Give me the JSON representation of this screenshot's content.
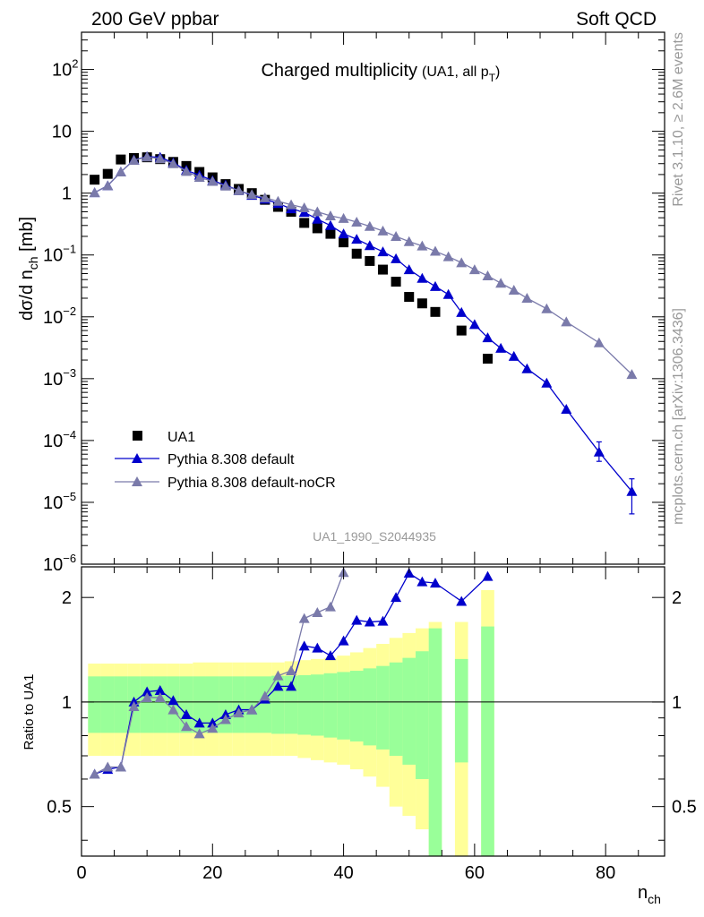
{
  "header": {
    "left": "200 GeV ppbar",
    "right": "Soft QCD"
  },
  "side": {
    "top": "Rivet 3.1.10, ≥ 2.6M events",
    "bottom": "mcplots.cern.ch [arXiv:1306.3436]"
  },
  "chart_data": [
    {
      "type": "scatter",
      "panel": "main",
      "title": "Charged multiplicity",
      "title_note_prefix": "(UA1, all p",
      "title_note_sub": "T",
      "title_note_suffix": ")",
      "ylabel": {
        "p1": "dσ/d n",
        "sub": "ch",
        "p2": " [mb]"
      },
      "yscale": "log",
      "ylim": [
        1e-06,
        400
      ],
      "xlim": [
        0,
        89
      ],
      "y_ticks": [
        {
          "v": 100,
          "base": "10",
          "exp": "2"
        },
        {
          "v": 10,
          "base": "10",
          "exp": ""
        },
        {
          "v": 1,
          "base": "1",
          "exp": ""
        },
        {
          "v": 0.1,
          "base": "10",
          "exp": "−1"
        },
        {
          "v": 0.01,
          "base": "10",
          "exp": "−2"
        },
        {
          "v": 0.001,
          "base": "10",
          "exp": "−3"
        },
        {
          "v": 0.0001,
          "base": "10",
          "exp": "−4"
        },
        {
          "v": 1e-05,
          "base": "10",
          "exp": "−5"
        },
        {
          "v": 1e-06,
          "base": "10",
          "exp": "−6"
        }
      ],
      "watermark": "UA1_1990_S2044935",
      "legend_position": "bottom-left",
      "series": [
        {
          "name": "UA1",
          "marker": "square",
          "color": "#000000",
          "x": [
            2,
            4,
            6,
            8,
            10,
            12,
            14,
            16,
            18,
            20,
            22,
            24,
            26,
            28,
            30,
            32,
            34,
            36,
            38,
            40,
            42,
            44,
            46,
            48,
            50,
            52,
            54,
            58,
            62
          ],
          "y": [
            1.65,
            2.05,
            3.5,
            3.7,
            3.8,
            3.55,
            3.2,
            2.75,
            2.2,
            1.8,
            1.4,
            1.17,
            1.0,
            0.78,
            0.6,
            0.5,
            0.33,
            0.27,
            0.22,
            0.16,
            0.105,
            0.08,
            0.058,
            0.037,
            0.021,
            0.0165,
            0.012,
            0.006,
            0.0021
          ]
        },
        {
          "name": "Pythia 8.308 default",
          "marker": "triangle",
          "color": "#0000cc",
          "x": [
            2,
            4,
            6,
            8,
            10,
            12,
            14,
            16,
            18,
            20,
            22,
            24,
            26,
            28,
            30,
            32,
            34,
            36,
            38,
            40,
            42,
            44,
            46,
            48,
            50,
            52,
            54,
            56,
            58,
            60,
            62,
            64,
            66,
            68,
            71,
            74,
            79,
            84
          ],
          "y": [
            1.02,
            1.32,
            2.2,
            3.45,
            3.9,
            3.8,
            3.1,
            2.35,
            1.95,
            1.6,
            1.35,
            1.1,
            0.92,
            0.8,
            0.68,
            0.56,
            0.49,
            0.38,
            0.3,
            0.22,
            0.18,
            0.142,
            0.113,
            0.087,
            0.058,
            0.042,
            0.031,
            0.023,
            0.0118,
            0.0075,
            0.0046,
            0.0031,
            0.0023,
            0.00145,
            0.00085,
            0.00032,
            6.5e-05,
            1.5e-05
          ],
          "err_hi": {
            "79": 9.5e-05,
            "84": 2.4e-05
          },
          "err_lo": {
            "79": 4.6e-05,
            "84": 6.5e-06
          }
        },
        {
          "name": "Pythia 8.308 default-noCR",
          "marker": "triangle",
          "color": "#7a7aaa",
          "x": [
            2,
            4,
            6,
            8,
            10,
            12,
            14,
            16,
            18,
            20,
            22,
            24,
            26,
            28,
            30,
            32,
            34,
            36,
            38,
            40,
            42,
            44,
            46,
            48,
            50,
            52,
            54,
            56,
            58,
            60,
            62,
            64,
            66,
            68,
            71,
            74,
            79,
            84
          ],
          "y": [
            1.02,
            1.32,
            2.2,
            3.4,
            3.85,
            3.6,
            3.0,
            2.25,
            1.8,
            1.55,
            1.3,
            1.1,
            0.95,
            0.84,
            0.74,
            0.65,
            0.58,
            0.5,
            0.43,
            0.39,
            0.34,
            0.29,
            0.245,
            0.2,
            0.165,
            0.14,
            0.115,
            0.094,
            0.075,
            0.058,
            0.046,
            0.035,
            0.027,
            0.02,
            0.0135,
            0.0083,
            0.0038,
            0.00117
          ]
        }
      ]
    },
    {
      "type": "line",
      "panel": "ratio",
      "ylabel": "Ratio to UA1",
      "xlabel": {
        "p1": "n",
        "sub": "ch"
      },
      "yscale": "log",
      "ylim": [
        0.36,
        2.45
      ],
      "xlim": [
        0,
        89
      ],
      "x_ticks": [
        0,
        20,
        40,
        60,
        80
      ],
      "y_ticks": [
        {
          "v": 0.5,
          "label": "0.5"
        },
        {
          "v": 1,
          "label": "1"
        },
        {
          "v": 2,
          "label": "2"
        }
      ],
      "bands": {
        "x_lo": [
          1,
          3,
          5,
          7,
          9,
          11,
          13,
          15,
          17,
          19,
          21,
          23,
          25,
          27,
          29,
          31,
          33,
          35,
          37,
          39,
          41,
          43,
          45,
          47,
          49,
          51,
          53,
          57,
          61
        ],
        "x_hi": [
          3,
          5,
          7,
          9,
          11,
          13,
          15,
          17,
          19,
          21,
          23,
          25,
          27,
          29,
          31,
          33,
          35,
          37,
          39,
          41,
          43,
          45,
          47,
          49,
          51,
          53,
          55,
          59,
          63
        ],
        "green_lo": [
          0.815,
          0.815,
          0.815,
          0.815,
          0.815,
          0.815,
          0.815,
          0.815,
          0.815,
          0.815,
          0.815,
          0.815,
          0.815,
          0.815,
          0.81,
          0.81,
          0.805,
          0.8,
          0.79,
          0.78,
          0.77,
          0.75,
          0.73,
          0.7,
          0.66,
          0.6,
          0.36,
          0.67,
          0.36
        ],
        "green_hi": [
          1.185,
          1.185,
          1.185,
          1.185,
          1.185,
          1.185,
          1.185,
          1.185,
          1.185,
          1.185,
          1.185,
          1.185,
          1.185,
          1.185,
          1.19,
          1.19,
          1.195,
          1.2,
          1.21,
          1.22,
          1.23,
          1.25,
          1.27,
          1.3,
          1.34,
          1.4,
          1.63,
          1.33,
          1.65
        ],
        "yellow_lo": [
          0.7,
          0.7,
          0.7,
          0.7,
          0.7,
          0.7,
          0.7,
          0.7,
          0.7,
          0.7,
          0.7,
          0.7,
          0.7,
          0.7,
          0.7,
          0.7,
          0.69,
          0.68,
          0.67,
          0.66,
          0.64,
          0.61,
          0.57,
          0.5,
          0.47,
          0.43,
          0.36,
          0.36,
          0.36
        ],
        "yellow_hi": [
          1.29,
          1.29,
          1.29,
          1.29,
          1.29,
          1.29,
          1.29,
          1.29,
          1.3,
          1.3,
          1.3,
          1.3,
          1.3,
          1.3,
          1.3,
          1.31,
          1.32,
          1.33,
          1.34,
          1.36,
          1.39,
          1.43,
          1.47,
          1.53,
          1.58,
          1.63,
          1.7,
          1.7,
          2.1
        ]
      },
      "series": [
        {
          "name": "Pythia 8.308 default",
          "color": "#0000cc",
          "x": [
            2,
            4,
            6,
            8,
            10,
            12,
            14,
            16,
            18,
            20,
            22,
            24,
            26,
            28,
            30,
            32,
            34,
            36,
            38,
            40,
            42,
            44,
            46,
            48,
            50,
            52,
            54,
            58,
            62
          ],
          "y": [
            0.62,
            0.64,
            0.65,
            1.0,
            1.07,
            1.08,
            1.01,
            0.92,
            0.87,
            0.87,
            0.92,
            0.95,
            0.95,
            1.02,
            1.11,
            1.11,
            1.45,
            1.43,
            1.36,
            1.5,
            1.72,
            1.7,
            1.71,
            2.0,
            2.35,
            2.22,
            2.2,
            1.95,
            2.3
          ]
        },
        {
          "name": "Pythia 8.308 default-noCR",
          "color": "#7a7aaa",
          "x": [
            2,
            4,
            6,
            8,
            10,
            12,
            14,
            16,
            18,
            20,
            22,
            24,
            26,
            28,
            30,
            32,
            34,
            36,
            38,
            40
          ],
          "y": [
            0.62,
            0.65,
            0.65,
            0.97,
            1.03,
            1.03,
            0.95,
            0.85,
            0.81,
            0.84,
            0.89,
            0.93,
            0.95,
            1.04,
            1.19,
            1.23,
            1.74,
            1.81,
            1.88,
            2.36
          ]
        }
      ]
    }
  ]
}
